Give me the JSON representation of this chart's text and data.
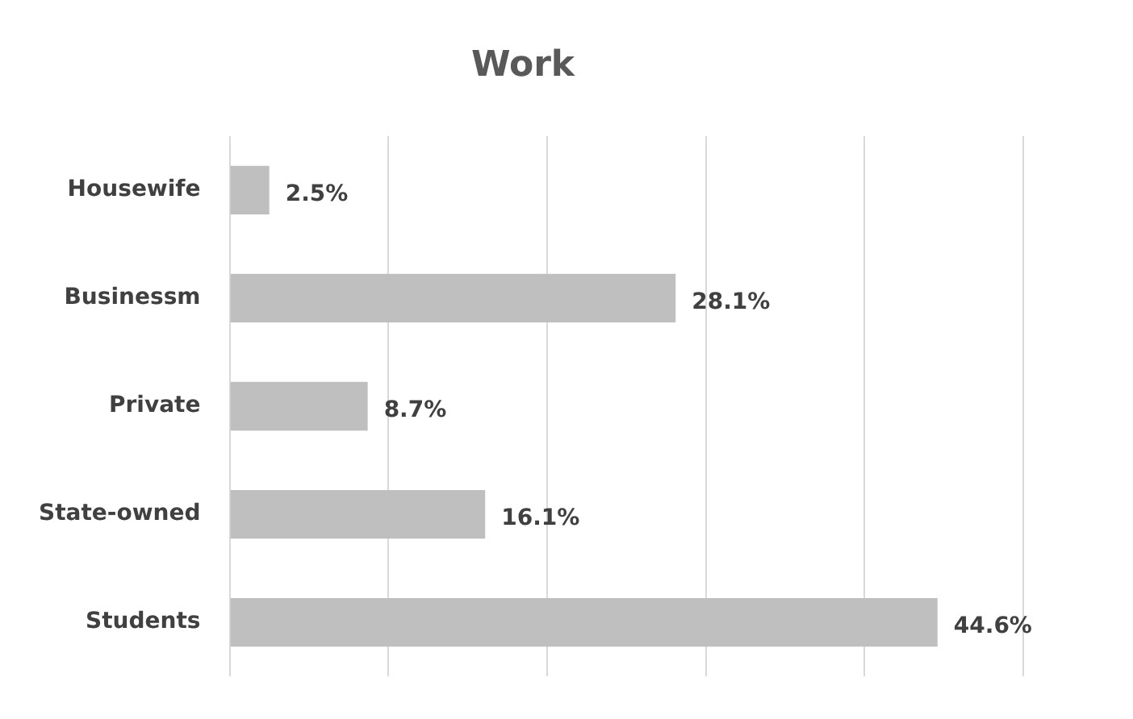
{
  "chart_data": {
    "type": "bar",
    "orientation": "horizontal",
    "title": "Work",
    "categories": [
      "Housewife",
      "Businessm",
      "Private",
      "State-owned",
      "Students"
    ],
    "values": [
      2.5,
      28.1,
      8.7,
      16.1,
      44.6
    ],
    "value_labels": [
      "2.5%",
      "28.1%",
      "8.7%",
      "16.1%",
      "44.6%"
    ],
    "color": "#bfbfbf",
    "xlim": [
      0,
      50
    ],
    "xticks": [
      {
        "value": 0,
        "label": null
      },
      {
        "value": 10,
        "label": null
      },
      {
        "value": 20,
        "label": null
      },
      {
        "value": 30,
        "label": null
      },
      {
        "value": 40,
        "label": null
      },
      {
        "value": 50,
        "label": null
      }
    ],
    "grid": "x",
    "tick_labels": "y",
    "legend": false
  }
}
